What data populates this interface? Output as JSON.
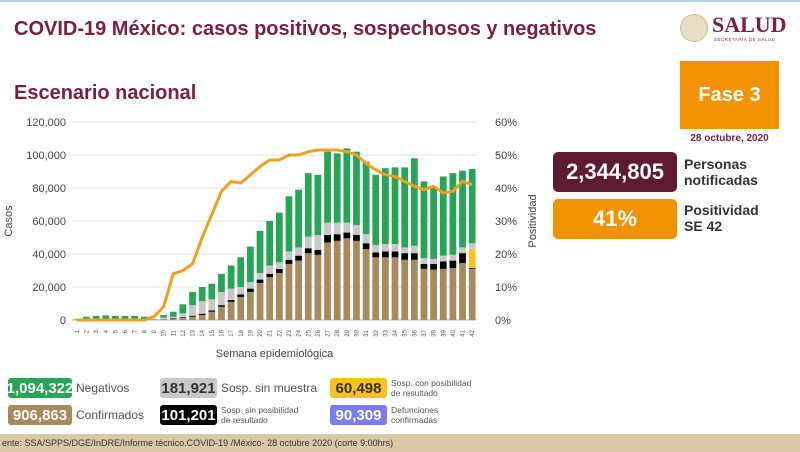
{
  "header": {
    "title": "COVID-19 México: casos positivos, sospechosos y negativos",
    "subtitle": "Escenario nacional"
  },
  "logo": {
    "name": "SALUD",
    "sub": "SECRETARÍA DE SALUD"
  },
  "phase": {
    "label": "Fase 3",
    "date": "28 octubre, 2020"
  },
  "kpis": [
    {
      "value": "2,344,805",
      "label1": "Personas",
      "label2": "notificadas",
      "color": "#5e1a31"
    },
    {
      "value": "41%",
      "label1": "Positividad",
      "label2": "SE 42",
      "color": "#f39200"
    }
  ],
  "legend": [
    {
      "value": "1,094,322",
      "label": "Negativos",
      "color": "#27a556"
    },
    {
      "value": "181,921",
      "label": "Sosp. sin muestra",
      "color": "#c8c8c8"
    },
    {
      "value": "60,498",
      "label1": "Sosp. con posibilidad",
      "label2": "de resultado",
      "color": "#f7c21a"
    },
    {
      "value": "906,863",
      "label": "Confirmados",
      "color": "#a88a5e"
    },
    {
      "value": "101,201",
      "label1": "Sosp. sin posibilidad",
      "label2": "de resultado",
      "color": "#000000"
    },
    {
      "value": "90,309",
      "label1": "Defunciones",
      "label2": "confirmadas",
      "color": "#7b7cf0"
    }
  ],
  "footer": "ente: SSA/SPPS/DGE/InDRE/Informe técnico.COVID-19 /México- 28 octubre 2020 (corte 9:00hrs)",
  "chart_data": {
    "type": "bar",
    "stacked": true,
    "xlabel": "Semana epidemiológica",
    "ylabel": "Casos",
    "y2label": "Positividad",
    "ylim": [
      0,
      120000
    ],
    "y2lim": [
      0,
      60
    ],
    "yticks": [
      "0",
      "20,000",
      "40,000",
      "60,000",
      "80,000",
      "100,000",
      "120,000"
    ],
    "y2ticks": [
      "0%",
      "10%",
      "20%",
      "30%",
      "40%",
      "50%",
      "60%"
    ],
    "grid": true,
    "categories": [
      "1",
      "2",
      "3",
      "4",
      "5",
      "6",
      "7",
      "8",
      "9",
      "10",
      "11",
      "12",
      "13",
      "14",
      "15",
      "16",
      "17",
      "18",
      "19",
      "20",
      "21",
      "22",
      "23",
      "24",
      "25",
      "26",
      "27",
      "28",
      "29",
      "30",
      "31",
      "32",
      "33",
      "34",
      "35",
      "36",
      "37",
      "38",
      "39",
      "40",
      "41",
      "42"
    ],
    "series": [
      {
        "name": "Confirmados",
        "color": "#a88a5e",
        "values": [
          0,
          100,
          100,
          100,
          100,
          100,
          100,
          100,
          0,
          200,
          600,
          1200,
          2000,
          3000,
          5000,
          8000,
          11000,
          14000,
          17000,
          22500,
          26000,
          28500,
          34000,
          36000,
          40500,
          39500,
          47000,
          48000,
          49500,
          48000,
          43000,
          38000,
          38000,
          38000,
          36500,
          36500,
          31000,
          30500,
          31000,
          31500,
          34500,
          31000
        ]
      },
      {
        "name": "Sosp. sin posibilidad de resultado",
        "color": "#000000",
        "values": [
          0,
          0,
          0,
          0,
          0,
          0,
          0,
          0,
          0,
          100,
          300,
          400,
          600,
          800,
          800,
          1000,
          1200,
          1500,
          2000,
          2000,
          2000,
          2500,
          2500,
          3000,
          3000,
          3000,
          4500,
          4000,
          3500,
          3500,
          3500,
          3000,
          3500,
          3500,
          4000,
          4000,
          3000,
          3500,
          4500,
          4500,
          6000,
          500
        ]
      },
      {
        "name": "Sosp. con posibilidad de resultado",
        "color": "#f7c21a",
        "values": [
          0,
          0,
          0,
          0,
          0,
          0,
          0,
          0,
          0,
          0,
          0,
          0,
          0,
          0,
          0,
          0,
          0,
          0,
          0,
          0,
          0,
          0,
          0,
          0,
          0,
          0,
          0,
          0,
          0,
          0,
          0,
          0,
          0,
          0,
          0,
          0,
          0,
          0,
          0,
          200,
          400,
          11500
        ]
      },
      {
        "name": "Sosp. sin muestra",
        "color": "#c8c8c8",
        "values": [
          200,
          500,
          600,
          700,
          600,
          600,
          600,
          500,
          200,
          1200,
          1100,
          2400,
          6400,
          7700,
          6700,
          8000,
          6800,
          4500,
          4000,
          4000,
          5000,
          4000,
          5000,
          5000,
          7000,
          9000,
          7500,
          7000,
          6000,
          6000,
          5500,
          4500,
          4500,
          4500,
          3500,
          4500,
          3500,
          3000,
          3500,
          3300,
          3100,
          3500
        ]
      },
      {
        "name": "Negativos",
        "color": "#27a556",
        "values": [
          300,
          1400,
          1800,
          2000,
          1800,
          1800,
          1800,
          1400,
          300,
          1500,
          3000,
          5500,
          8000,
          8500,
          9500,
          11000,
          14000,
          18000,
          21500,
          25500,
          27000,
          30000,
          33500,
          35000,
          38500,
          36500,
          43000,
          42000,
          45000,
          44500,
          44000,
          42500,
          46000,
          46500,
          48500,
          53000,
          46500,
          44000,
          48000,
          49500,
          46500,
          45000
        ]
      }
    ],
    "line": {
      "name": "Positividad",
      "color": "#f0a020",
      "axis": "right",
      "values": [
        0,
        0,
        0,
        0,
        0,
        0,
        0,
        0,
        1,
        4,
        14,
        15,
        17,
        25,
        32,
        39,
        42,
        41.5,
        44,
        46.5,
        48.5,
        48.5,
        50,
        50,
        51,
        51.5,
        51.5,
        51.5,
        51,
        50,
        47.5,
        45.5,
        44,
        43.5,
        42,
        40.5,
        39.5,
        40.5,
        38.5,
        39,
        42,
        41
      ]
    }
  }
}
